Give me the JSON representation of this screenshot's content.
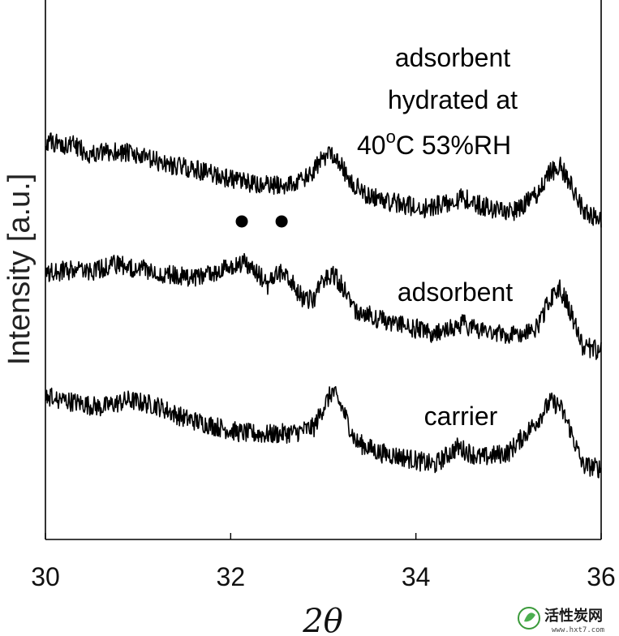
{
  "chart_data": {
    "type": "line",
    "xlabel": "2θ",
    "ylabel": "Intensity [a.u.]",
    "xlim": [
      30,
      36
    ],
    "xticks": [
      30,
      32,
      34,
      36
    ],
    "xtick_labels": [
      "30",
      "32",
      "34",
      "36"
    ],
    "yticks": [],
    "grid": false,
    "legend": "none",
    "series": [
      {
        "name": "adsorbent hydrated at 40oC 53%RH",
        "x": [
          30.0,
          30.3,
          30.5,
          30.8,
          31.0,
          31.3,
          31.6,
          31.9,
          32.1,
          32.3,
          32.5,
          32.7,
          32.85,
          33.0,
          33.08,
          33.15,
          33.3,
          33.5,
          33.8,
          34.1,
          34.3,
          34.5,
          34.7,
          34.9,
          35.1,
          35.3,
          35.45,
          35.55,
          35.65,
          35.8,
          36.0
        ],
        "y": [
          8.65,
          8.55,
          8.3,
          8.4,
          8.25,
          8.05,
          7.9,
          7.7,
          7.55,
          7.45,
          7.45,
          7.5,
          7.7,
          8.2,
          8.4,
          8.2,
          7.5,
          7.15,
          6.95,
          6.8,
          6.95,
          7.1,
          6.9,
          6.75,
          6.75,
          7.2,
          7.8,
          8.0,
          7.6,
          6.8,
          6.45
        ],
        "color": "#000000"
      },
      {
        "name": "adsorbent",
        "x": [
          30.0,
          30.25,
          30.5,
          30.7,
          30.9,
          31.2,
          31.5,
          31.8,
          32.0,
          32.15,
          32.3,
          32.4,
          32.5,
          32.58,
          32.7,
          32.8,
          32.9,
          33.0,
          33.1,
          33.2,
          33.35,
          33.6,
          33.9,
          34.2,
          34.5,
          34.8,
          35.1,
          35.3,
          35.45,
          35.55,
          35.65,
          35.8,
          36.0
        ],
        "y": [
          5.0,
          5.1,
          5.05,
          5.25,
          5.2,
          5.05,
          4.9,
          4.95,
          5.2,
          5.3,
          5.0,
          4.7,
          5.0,
          5.1,
          4.6,
          4.25,
          4.3,
          4.8,
          5.0,
          4.7,
          4.0,
          3.75,
          3.55,
          3.35,
          3.6,
          3.4,
          3.3,
          3.5,
          4.3,
          4.6,
          4.1,
          3.0,
          2.85
        ],
        "color": "#000000"
      },
      {
        "name": "carrier",
        "x": [
          30.0,
          30.3,
          30.6,
          30.9,
          31.2,
          31.5,
          31.8,
          32.1,
          32.4,
          32.7,
          32.9,
          33.0,
          33.1,
          33.2,
          33.35,
          33.6,
          33.9,
          34.2,
          34.45,
          34.7,
          35.0,
          35.3,
          35.45,
          35.55,
          35.65,
          35.8,
          36.0
        ],
        "y": [
          1.6,
          1.45,
          1.3,
          1.5,
          1.35,
          1.0,
          0.8,
          0.6,
          0.55,
          0.6,
          0.75,
          1.3,
          1.75,
          1.3,
          0.35,
          0.05,
          -0.1,
          -0.3,
          0.2,
          -0.1,
          0.05,
          0.9,
          1.45,
          1.35,
          0.8,
          -0.3,
          -0.4
        ],
        "color": "#000000"
      }
    ],
    "markers": [
      {
        "shape": "dot",
        "x": 32.12,
        "y": 6.45
      },
      {
        "shape": "dot",
        "x": 32.55,
        "y": 6.45
      }
    ],
    "annotations": {
      "hydrated": {
        "lines": [
          "adsorbent",
          "hydrated at",
          "40",
          "o",
          "C 53%RH"
        ]
      },
      "adsorbent": "adsorbent",
      "carrier": "carrier"
    }
  },
  "watermark": {
    "text": "活性炭网",
    "subtext": "www.hxt7.com"
  }
}
